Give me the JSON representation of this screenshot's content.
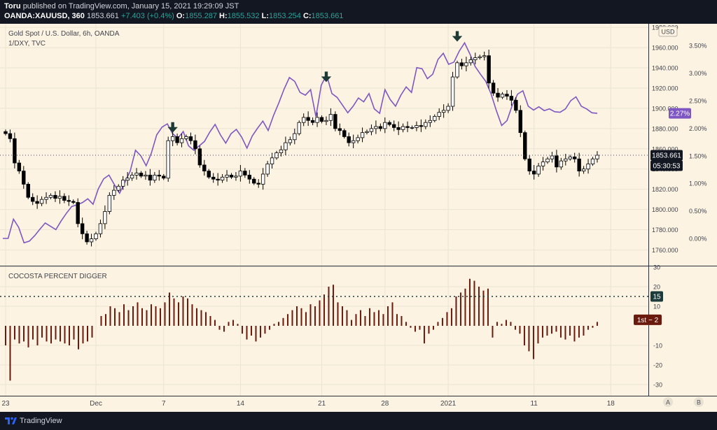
{
  "header": {
    "published_by": "Toru",
    "published_text": "published on TradingView.com, January 15, 2021 19:29:09 JST",
    "symbol": "OANDA:XAUUSD, 360",
    "last": "1853.661",
    "change": "+7.403 (+0.4%)",
    "o_label": "O:",
    "o_val": "1855.287",
    "h_label": "H:",
    "h_val": "1855.532",
    "l_label": "L:",
    "l_val": "1853.254",
    "c_label": "C:",
    "c_val": "1853.661"
  },
  "main_pane": {
    "title": "Gold Spot / U.S. Dollar, 6h, OANDA",
    "overlay_title": "1/DXY, TVC",
    "currency": "USD",
    "price_badge": "1853.661",
    "countdown_badge": "05:30:53",
    "overlay_badge": "2.27%"
  },
  "indicator_pane": {
    "title": "COCOSTA PERCENT DIGGER",
    "level_badge": "15",
    "last_badge": "1st − 2"
  },
  "footer": {
    "brand": "TradingView",
    "scale_a": "A",
    "scale_b": "B"
  },
  "colors": {
    "background": "#fcf3e2",
    "up_candle": "#ffffff",
    "down_candle": "#000000",
    "overlay_line": "#7e57c2",
    "histogram": "#6b1a0e",
    "arrow": "#1d3b34"
  },
  "chart_data": [
    {
      "type": "candlestick",
      "title": "Gold Spot / U.S. Dollar, 6h, OANDA",
      "x_ticks": [
        "23",
        "Dec",
        "7",
        "14",
        "21",
        "28",
        "2021",
        "11",
        "18"
      ],
      "y_ticks": [
        "1760.000",
        "1780.000",
        "1800.000",
        "1820.000",
        "1840.000",
        "1860.000",
        "1880.000",
        "1900.000",
        "1920.000",
        "1940.000",
        "1960.000",
        "1980.000"
      ],
      "ylim": [
        1740,
        1984
      ],
      "close": [
        1875,
        1870,
        1846,
        1838,
        1825,
        1812,
        1808,
        1806,
        1810,
        1812,
        1814,
        1811,
        1813,
        1809,
        1808,
        1807,
        1786,
        1776,
        1768,
        1771,
        1776,
        1786,
        1798,
        1814,
        1819,
        1823,
        1829,
        1831,
        1834,
        1836,
        1833,
        1834,
        1829,
        1834,
        1833,
        1831,
        1868,
        1872,
        1866,
        1870,
        1872,
        1868,
        1860,
        1844,
        1838,
        1832,
        1830,
        1829,
        1832,
        1834,
        1832,
        1833,
        1838,
        1834,
        1830,
        1826,
        1825,
        1835,
        1845,
        1851,
        1856,
        1859,
        1866,
        1869,
        1875,
        1886,
        1891,
        1888,
        1886,
        1891,
        1887,
        1888,
        1894,
        1880,
        1878,
        1872,
        1866,
        1868,
        1871,
        1876,
        1877,
        1880,
        1882,
        1880,
        1886,
        1884,
        1881,
        1879,
        1882,
        1881,
        1881,
        1883,
        1882,
        1886,
        1888,
        1892,
        1896,
        1898,
        1902,
        1931,
        1945,
        1942,
        1945,
        1948,
        1950,
        1951,
        1952,
        1925,
        1915,
        1911,
        1914,
        1912,
        1908,
        1898,
        1876,
        1850,
        1838,
        1835,
        1843,
        1847,
        1850,
        1853,
        1842,
        1848,
        1850,
        1852,
        1850,
        1838,
        1840,
        1845,
        1850,
        1853.661
      ],
      "overlay": {
        "name": "1/DXY, TVC",
        "unit": "%",
        "y_ticks": [
          "0.00%",
          "0.50%",
          "1.00%",
          "1.50%",
          "2.00%",
          "2.50%",
          "3.00%",
          "3.50%"
        ],
        "values": [
          0.0,
          0.0,
          0.35,
          0.2,
          -0.08,
          -0.05,
          0.05,
          0.17,
          0.28,
          0.22,
          0.16,
          0.32,
          0.46,
          0.58,
          0.61,
          0.65,
          0.72,
          0.62,
          0.9,
          1.08,
          1.15,
          0.98,
          0.82,
          1.02,
          1.22,
          1.6,
          1.5,
          1.32,
          1.55,
          1.88,
          2.02,
          2.08,
          1.9,
          1.82,
          1.94,
          1.68,
          1.6,
          1.68,
          1.76,
          1.93,
          2.07,
          1.88,
          1.73,
          1.9,
          1.98,
          1.84,
          1.64,
          1.86,
          2.0,
          2.13,
          1.96,
          2.23,
          2.46,
          2.71,
          2.92,
          2.85,
          2.65,
          2.6,
          2.7,
          2.21,
          2.78,
          2.97,
          2.63,
          2.56,
          2.42,
          2.28,
          2.4,
          2.55,
          2.48,
          2.63,
          2.35,
          2.27,
          2.7,
          2.52,
          2.4,
          2.6,
          2.75,
          2.65,
          3.1,
          3.08,
          2.9,
          2.98,
          3.25,
          3.36,
          3.16,
          3.2,
          3.4,
          3.55,
          3.35,
          3.12,
          2.98,
          2.85,
          2.62,
          2.32,
          2.05,
          2.14,
          2.42,
          2.62,
          2.68,
          2.4,
          2.33,
          2.39,
          2.32,
          2.35,
          2.3,
          2.29,
          2.35,
          2.5,
          2.57,
          2.4,
          2.35,
          2.28,
          2.27
        ]
      },
      "annotations": [
        "down-arrow",
        "down-arrow",
        "down-arrow"
      ]
    },
    {
      "type": "histogram",
      "title": "COCOSTA PERCENT DIGGER",
      "y_ticks": [
        "-30",
        "-20",
        "-10",
        "10",
        "20",
        "30"
      ],
      "ylim": [
        -34,
        32
      ],
      "reference_line": 15,
      "values": [
        -10,
        -28,
        -7,
        -9,
        -8,
        -11,
        -7,
        -10,
        -6,
        -8,
        -9,
        -7,
        -8,
        -9,
        -10,
        -7,
        -12,
        -9,
        -8,
        -6,
        0,
        5,
        6,
        10,
        9,
        7,
        11,
        8,
        10,
        12,
        9,
        8,
        11,
        10,
        9,
        12,
        17,
        14,
        12,
        15,
        14,
        11,
        9,
        8,
        7,
        5,
        3,
        -2,
        -3,
        2,
        3,
        1,
        -4,
        -7,
        -5,
        -8,
        -6,
        -4,
        -2,
        1,
        2,
        4,
        6,
        8,
        10,
        9,
        7,
        11,
        10,
        13,
        16,
        20,
        21,
        12,
        10,
        8,
        3,
        6,
        8,
        5,
        9,
        7,
        8,
        6,
        10,
        12,
        6,
        5,
        2,
        -1,
        -3,
        -2,
        -9,
        -4,
        -2,
        2,
        4,
        7,
        9,
        15,
        17,
        19,
        24,
        23,
        20,
        18,
        19,
        -6,
        2,
        1,
        3,
        2,
        -2,
        -4,
        -10,
        -13,
        -17,
        -9,
        -6,
        -5,
        -4,
        -3,
        -6,
        -7,
        -5,
        -8,
        -6,
        -5,
        -2,
        -1,
        2
      ]
    }
  ]
}
